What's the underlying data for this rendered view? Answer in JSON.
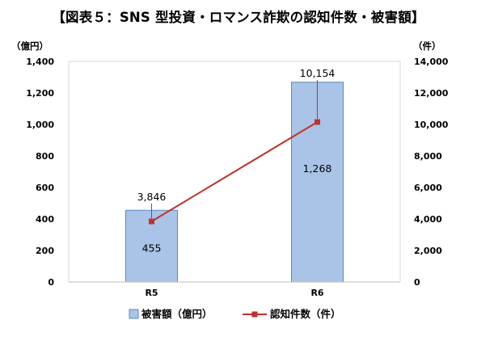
{
  "chart_data": {
    "type": "bar",
    "title": "【図表５：SNS 型投資・ロマンス詐欺の認知件数・被害額】",
    "categories": [
      "R5",
      "R6"
    ],
    "y_left": {
      "unit": "（億円）",
      "ylim": [
        0,
        1400
      ],
      "ticks": [
        0,
        200,
        400,
        600,
        800,
        1000,
        1200,
        1400
      ]
    },
    "y_right": {
      "unit": "（件）",
      "ylim": [
        0,
        14000
      ],
      "ticks": [
        0,
        2000,
        4000,
        6000,
        8000,
        10000,
        12000,
        14000
      ]
    },
    "series": [
      {
        "name": "被害額（億円）",
        "kind": "bar",
        "axis": "left",
        "values": [
          455,
          1268
        ],
        "labels": [
          "455",
          "1,268"
        ],
        "color": "#a9c4e6",
        "stroke": "#5b87c5"
      },
      {
        "name": "認知件数（件）",
        "kind": "line",
        "axis": "right",
        "values": [
          3846,
          10154
        ],
        "labels": [
          "3,846",
          "10,154"
        ],
        "color": "#c0312b"
      }
    ],
    "grid": false,
    "legend": "bottom"
  }
}
